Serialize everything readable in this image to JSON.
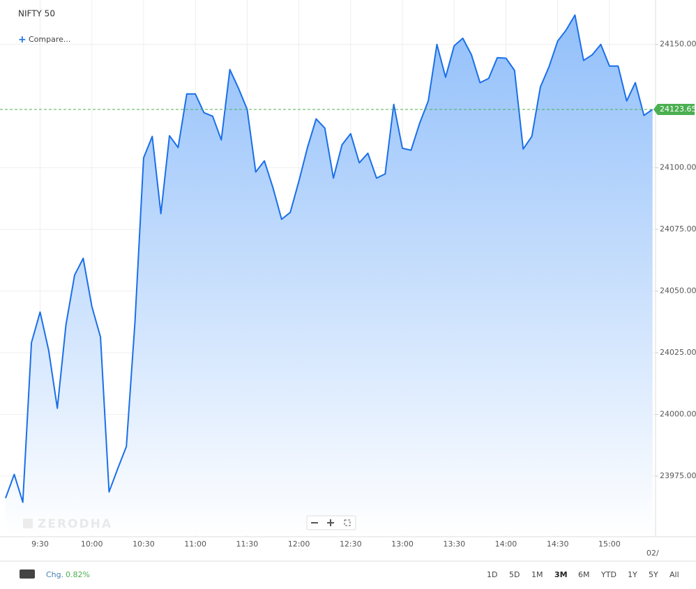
{
  "chart_data": {
    "type": "area",
    "title": "NIFTY 50",
    "categories": [
      null,
      null,
      null,
      null,
      "9:30",
      null,
      null,
      null,
      null,
      null,
      "10:00",
      null,
      null,
      null,
      null,
      null,
      "10:30",
      null,
      null,
      null,
      null,
      null,
      "11:00",
      null,
      null,
      null,
      null,
      null,
      "11:30",
      null,
      null,
      null,
      null,
      null,
      "12:00",
      null,
      null,
      null,
      null,
      null,
      "12:30",
      null,
      null,
      null,
      null,
      null,
      "13:00",
      null,
      null,
      null,
      null,
      null,
      "13:30",
      null,
      null,
      null,
      null,
      null,
      "14:00",
      null,
      null,
      null,
      null,
      null,
      "14:30",
      null,
      null,
      null,
      null,
      null,
      "15:00",
      null,
      null,
      null,
      null,
      null
    ],
    "values": [
      23966.1,
      23975.7,
      23964.4,
      24029.1,
      24041.5,
      24026.0,
      24002.5,
      24036.4,
      24056.5,
      24063.3,
      24043.8,
      24031.4,
      23968.6,
      23978.0,
      23987.0,
      24037.3,
      24104.0,
      24112.7,
      24081.4,
      24113.0,
      24108.2,
      24129.9,
      24129.9,
      24122.3,
      24120.9,
      24111.3,
      24139.8,
      24132.2,
      24123.7,
      24098.3,
      24102.8,
      24091.8,
      24079.1,
      24081.9,
      24094.6,
      24108.2,
      24119.8,
      24116.1,
      24095.8,
      24109.3,
      24113.8,
      24102.0,
      24105.9,
      24095.8,
      24097.5,
      24125.7,
      24107.9,
      24107.1,
      24118.1,
      24127.1,
      24150.0,
      24136.7,
      24149.4,
      24152.5,
      24145.8,
      24134.5,
      24136.2,
      24144.6,
      24144.4,
      24139.5,
      24107.6,
      24112.7,
      24132.8,
      24141.0,
      24151.4,
      24155.9,
      24161.9,
      24143.5,
      24145.8,
      24150.0,
      24141.2,
      24141.2,
      24127.1,
      24134.5,
      24121.2,
      24123.65
    ],
    "color": "#1a6fe8",
    "fill_color": "#8cbcfa",
    "grid": true,
    "ylim": [
      23951,
      24168
    ],
    "yticks": [
      {
        "value": 23975,
        "label": "23975.00"
      },
      {
        "value": 24000,
        "label": "24000.00"
      },
      {
        "value": 24025,
        "label": "24025.00"
      },
      {
        "value": 24050,
        "label": "24050.00"
      },
      {
        "value": 24075,
        "label": "24075.00"
      },
      {
        "value": 24100,
        "label": "24100.00"
      },
      {
        "value": 24150,
        "label": "24150.00"
      }
    ],
    "last_price": 24123.65,
    "last_price_color": "#4caf50",
    "x_edge_label": "02/"
  },
  "ui": {
    "compare": "Compare...",
    "watermark": "ZERODHA",
    "change_label": "Chg.",
    "change": "0.82%",
    "ranges": [
      "1D",
      "5D",
      "1M",
      "3M",
      "6M",
      "YTD",
      "1Y",
      "5Y",
      "All"
    ],
    "active_range": "3M"
  }
}
